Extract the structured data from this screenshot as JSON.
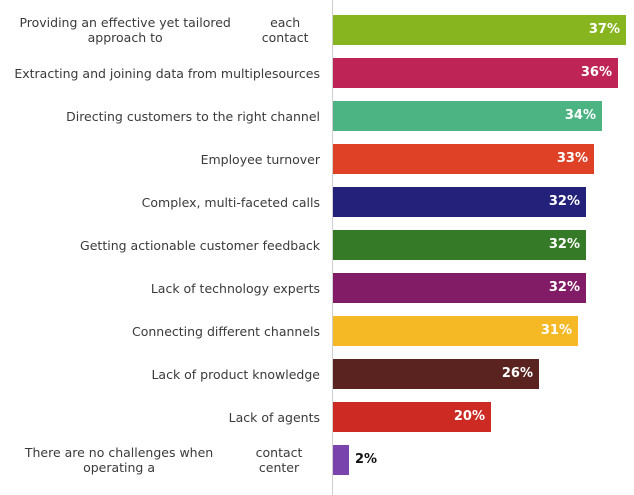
{
  "chart_data": {
    "type": "bar",
    "orientation": "horizontal",
    "title": "",
    "xlabel": "",
    "ylabel": "",
    "xlim": [
      0,
      37
    ],
    "categories": [
      "Providing an effective yet tailored approach to each contact",
      "Extracting and joining data from multiple sources",
      "Directing customers to the right channel",
      "Employee turnover",
      "Complex, multi-faceted calls",
      "Getting actionable customer feedback",
      "Lack of technology experts",
      "Connecting different channels",
      "Lack of product knowledge",
      "Lack of agents",
      "There are no challenges when operating a contact center"
    ],
    "values": [
      37,
      36,
      34,
      33,
      32,
      32,
      32,
      31,
      26,
      20,
      2
    ],
    "value_labels": [
      "37%",
      "36%",
      "34%",
      "33%",
      "32%",
      "32%",
      "32%",
      "31%",
      "26%",
      "20%",
      "2%"
    ],
    "colors": [
      "#86b520",
      "#be2556",
      "#4bb482",
      "#de4126",
      "#24217a",
      "#357b27",
      "#821c66",
      "#f4b925",
      "#5a2320",
      "#cc2a23",
      "#7a44ad"
    ]
  }
}
